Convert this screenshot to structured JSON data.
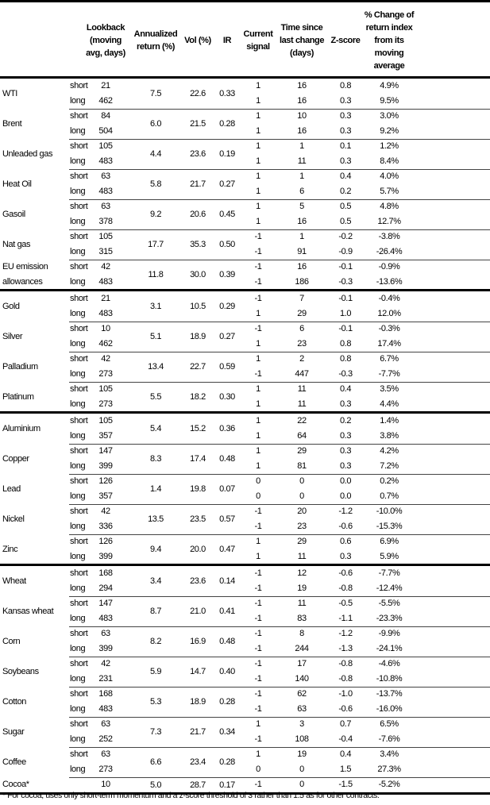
{
  "headers": {
    "lookback": "Lookback (moving avg, days)",
    "annualized": "Annualized return (%)",
    "vol": "Vol (%)",
    "ir": "IR",
    "signal": "Current signal",
    "time": "Time since last change (days)",
    "zscore": "Z-score",
    "pct": "% Change of return index from its moving average"
  },
  "groups": [
    [
      {
        "name": "WTI",
        "ann": "7.5",
        "vol": "22.6",
        "ir": "0.33",
        "rows": [
          [
            "short",
            "21",
            "1",
            "16",
            "0.8",
            "4.9%"
          ],
          [
            "long",
            "462",
            "1",
            "16",
            "0.3",
            "9.5%"
          ]
        ]
      },
      {
        "name": "Brent",
        "ann": "6.0",
        "vol": "21.5",
        "ir": "0.28",
        "rows": [
          [
            "short",
            "84",
            "1",
            "10",
            "0.3",
            "3.0%"
          ],
          [
            "long",
            "504",
            "1",
            "16",
            "0.3",
            "9.2%"
          ]
        ]
      },
      {
        "name": "Unleaded gas",
        "ann": "4.4",
        "vol": "23.6",
        "ir": "0.19",
        "rows": [
          [
            "short",
            "105",
            "1",
            "1",
            "0.1",
            "1.2%"
          ],
          [
            "long",
            "483",
            "1",
            "11",
            "0.3",
            "8.4%"
          ]
        ]
      },
      {
        "name": "Heat Oil",
        "ann": "5.8",
        "vol": "21.7",
        "ir": "0.27",
        "rows": [
          [
            "short",
            "63",
            "1",
            "1",
            "0.4",
            "4.0%"
          ],
          [
            "long",
            "483",
            "1",
            "6",
            "0.2",
            "5.7%"
          ]
        ]
      },
      {
        "name": "Gasoil",
        "ann": "9.2",
        "vol": "20.6",
        "ir": "0.45",
        "rows": [
          [
            "short",
            "63",
            "1",
            "5",
            "0.5",
            "4.8%"
          ],
          [
            "long",
            "378",
            "1",
            "16",
            "0.5",
            "12.7%"
          ]
        ]
      },
      {
        "name": "Nat gas",
        "ann": "17.7",
        "vol": "35.3",
        "ir": "0.50",
        "rows": [
          [
            "short",
            "105",
            "-1",
            "1",
            "-0.2",
            "-3.8%"
          ],
          [
            "long",
            "315",
            "-1",
            "91",
            "-0.9",
            "-26.4%"
          ]
        ]
      },
      {
        "name": "EU emission allowances",
        "ann": "11.8",
        "vol": "30.0",
        "ir": "0.39",
        "rows": [
          [
            "short",
            "42",
            "-1",
            "16",
            "-0.1",
            "-0.9%"
          ],
          [
            "long",
            "483",
            "-1",
            "186",
            "-0.3",
            "-13.6%"
          ]
        ]
      }
    ],
    [
      {
        "name": "Gold",
        "ann": "3.1",
        "vol": "10.5",
        "ir": "0.29",
        "rows": [
          [
            "short",
            "21",
            "-1",
            "7",
            "-0.1",
            "-0.4%"
          ],
          [
            "long",
            "483",
            "1",
            "29",
            "1.0",
            "12.0%"
          ]
        ]
      },
      {
        "name": "Silver",
        "ann": "5.1",
        "vol": "18.9",
        "ir": "0.27",
        "rows": [
          [
            "short",
            "10",
            "-1",
            "6",
            "-0.1",
            "-0.3%"
          ],
          [
            "long",
            "462",
            "1",
            "23",
            "0.8",
            "17.4%"
          ]
        ]
      },
      {
        "name": "Palladium",
        "ann": "13.4",
        "vol": "22.7",
        "ir": "0.59",
        "rows": [
          [
            "short",
            "42",
            "1",
            "2",
            "0.8",
            "6.7%"
          ],
          [
            "long",
            "273",
            "-1",
            "447",
            "-0.3",
            "-7.7%"
          ]
        ]
      },
      {
        "name": "Platinum",
        "ann": "5.5",
        "vol": "18.2",
        "ir": "0.30",
        "rows": [
          [
            "short",
            "105",
            "1",
            "11",
            "0.4",
            "3.5%"
          ],
          [
            "long",
            "273",
            "1",
            "11",
            "0.3",
            "4.4%"
          ]
        ]
      }
    ],
    [
      {
        "name": "Aluminium",
        "ann": "5.4",
        "vol": "15.2",
        "ir": "0.36",
        "rows": [
          [
            "short",
            "105",
            "1",
            "22",
            "0.2",
            "1.4%"
          ],
          [
            "long",
            "357",
            "1",
            "64",
            "0.3",
            "3.8%"
          ]
        ]
      },
      {
        "name": "Copper",
        "ann": "8.3",
        "vol": "17.4",
        "ir": "0.48",
        "rows": [
          [
            "short",
            "147",
            "1",
            "29",
            "0.3",
            "4.2%"
          ],
          [
            "long",
            "399",
            "1",
            "81",
            "0.3",
            "7.2%"
          ]
        ]
      },
      {
        "name": "Lead",
        "ann": "1.4",
        "vol": "19.8",
        "ir": "0.07",
        "rows": [
          [
            "short",
            "126",
            "0",
            "0",
            "0.0",
            "0.2%"
          ],
          [
            "long",
            "357",
            "0",
            "0",
            "0.0",
            "0.7%"
          ]
        ]
      },
      {
        "name": "Nickel",
        "ann": "13.5",
        "vol": "23.5",
        "ir": "0.57",
        "rows": [
          [
            "short",
            "42",
            "-1",
            "20",
            "-1.2",
            "-10.0%"
          ],
          [
            "long",
            "336",
            "-1",
            "23",
            "-0.6",
            "-15.3%"
          ]
        ]
      },
      {
        "name": "Zinc",
        "ann": "9.4",
        "vol": "20.0",
        "ir": "0.47",
        "rows": [
          [
            "short",
            "126",
            "1",
            "29",
            "0.6",
            "6.9%"
          ],
          [
            "long",
            "399",
            "1",
            "11",
            "0.3",
            "5.9%"
          ]
        ]
      }
    ],
    [
      {
        "name": "Wheat",
        "ann": "3.4",
        "vol": "23.6",
        "ir": "0.14",
        "rows": [
          [
            "short",
            "168",
            "-1",
            "12",
            "-0.6",
            "-7.7%"
          ],
          [
            "long",
            "294",
            "-1",
            "19",
            "-0.8",
            "-12.4%"
          ]
        ]
      },
      {
        "name": "Kansas wheat",
        "ann": "8.7",
        "vol": "21.0",
        "ir": "0.41",
        "rows": [
          [
            "short",
            "147",
            "-1",
            "11",
            "-0.5",
            "-5.5%"
          ],
          [
            "long",
            "483",
            "-1",
            "83",
            "-1.1",
            "-23.3%"
          ]
        ]
      },
      {
        "name": "Corn",
        "ann": "8.2",
        "vol": "16.9",
        "ir": "0.48",
        "rows": [
          [
            "short",
            "63",
            "-1",
            "8",
            "-1.2",
            "-9.9%"
          ],
          [
            "long",
            "399",
            "-1",
            "244",
            "-1.3",
            "-24.1%"
          ]
        ]
      },
      {
        "name": "Soybeans",
        "ann": "5.9",
        "vol": "14.7",
        "ir": "0.40",
        "rows": [
          [
            "short",
            "42",
            "-1",
            "17",
            "-0.8",
            "-4.6%"
          ],
          [
            "long",
            "231",
            "-1",
            "140",
            "-0.8",
            "-10.8%"
          ]
        ]
      },
      {
        "name": "Cotton",
        "ann": "5.3",
        "vol": "18.9",
        "ir": "0.28",
        "rows": [
          [
            "short",
            "168",
            "-1",
            "62",
            "-1.0",
            "-13.7%"
          ],
          [
            "long",
            "483",
            "-1",
            "63",
            "-0.6",
            "-16.0%"
          ]
        ]
      },
      {
        "name": "Sugar",
        "ann": "7.3",
        "vol": "21.7",
        "ir": "0.34",
        "rows": [
          [
            "short",
            "63",
            "1",
            "3",
            "0.7",
            "6.5%"
          ],
          [
            "long",
            "252",
            "-1",
            "108",
            "-0.4",
            "-7.6%"
          ]
        ]
      },
      {
        "name": "Coffee",
        "ann": "6.6",
        "vol": "23.4",
        "ir": "0.28",
        "rows": [
          [
            "short",
            "63",
            "1",
            "19",
            "0.4",
            "3.4%"
          ],
          [
            "long",
            "273",
            "0",
            "0",
            "1.5",
            "27.3%"
          ]
        ]
      },
      {
        "name": "Cocoa*",
        "ann": "5.0",
        "vol": "28.7",
        "ir": "0.17",
        "rows": [
          [
            "",
            "10",
            "-1",
            "0",
            "-1.5",
            "-5.2%"
          ]
        ]
      }
    ]
  ],
  "footnote": "* For cocoa, uses only short-term momentum and a z-score threshold of 3 rather than 1.5 as for other contracts."
}
